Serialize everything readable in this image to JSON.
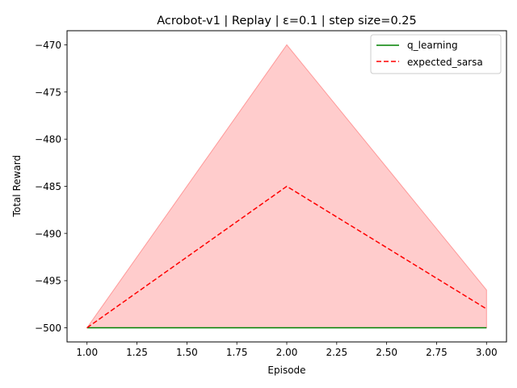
{
  "chart_data": {
    "type": "line",
    "title": "Acrobot-v1 | Replay | ε=0.1 | step size=0.25",
    "xlabel": "Episode",
    "ylabel": "Total Reward",
    "xlim": [
      0.9,
      3.1
    ],
    "ylim": [
      -501.5,
      -468.5
    ],
    "x": [
      1.0,
      2.0,
      3.0
    ],
    "xticks": [
      1.0,
      1.25,
      1.5,
      1.75,
      2.0,
      2.25,
      2.5,
      2.75,
      3.0
    ],
    "xtick_labels": [
      "1.00",
      "1.25",
      "1.50",
      "1.75",
      "2.00",
      "2.25",
      "2.50",
      "2.75",
      "3.00"
    ],
    "yticks": [
      -500,
      -495,
      -490,
      -485,
      -480,
      -475,
      -470
    ],
    "ytick_labels": [
      "−500",
      "−495",
      "−490",
      "−485",
      "−480",
      "−475",
      "−470"
    ],
    "series": [
      {
        "name": "q_learning",
        "values": [
          -500,
          -500,
          -500
        ],
        "color": "#008000",
        "style": "solid"
      },
      {
        "name": "expected_sarsa",
        "values": [
          -500,
          -485,
          -498
        ],
        "color": "#ff0000",
        "style": "dashed",
        "band_lower": [
          -500,
          -500,
          -500
        ],
        "band_upper": [
          -500,
          -470,
          -496
        ],
        "band_color": "#ff9999"
      }
    ],
    "legend": "top-right",
    "grid": false
  }
}
